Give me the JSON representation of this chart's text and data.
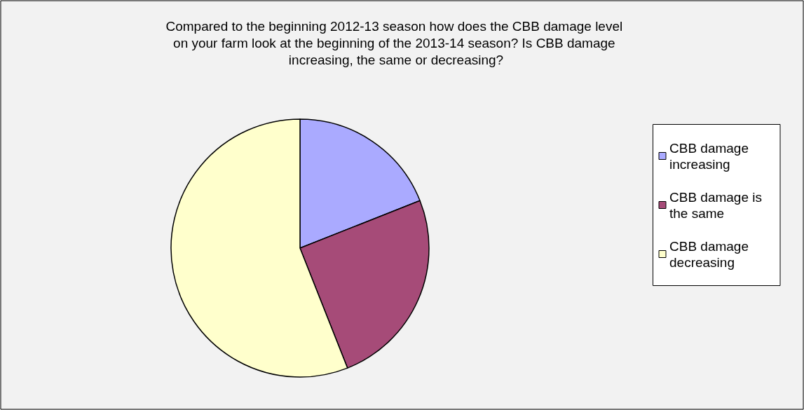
{
  "chart_data": {
    "type": "pie",
    "title": "Compared to the beginning 2012-13 season how does the CBB damage level on your farm look at the beginning of the 2013-14 season? Is CBB damage increasing, the same or decreasing?",
    "categories": [
      "CBB damage increasing",
      "CBB damage is the same",
      "CBB damage decreasing"
    ],
    "values": [
      19,
      25,
      56
    ],
    "colors": [
      "#aaaaff",
      "#a64b78",
      "#ffffcc"
    ],
    "legend": "right"
  }
}
